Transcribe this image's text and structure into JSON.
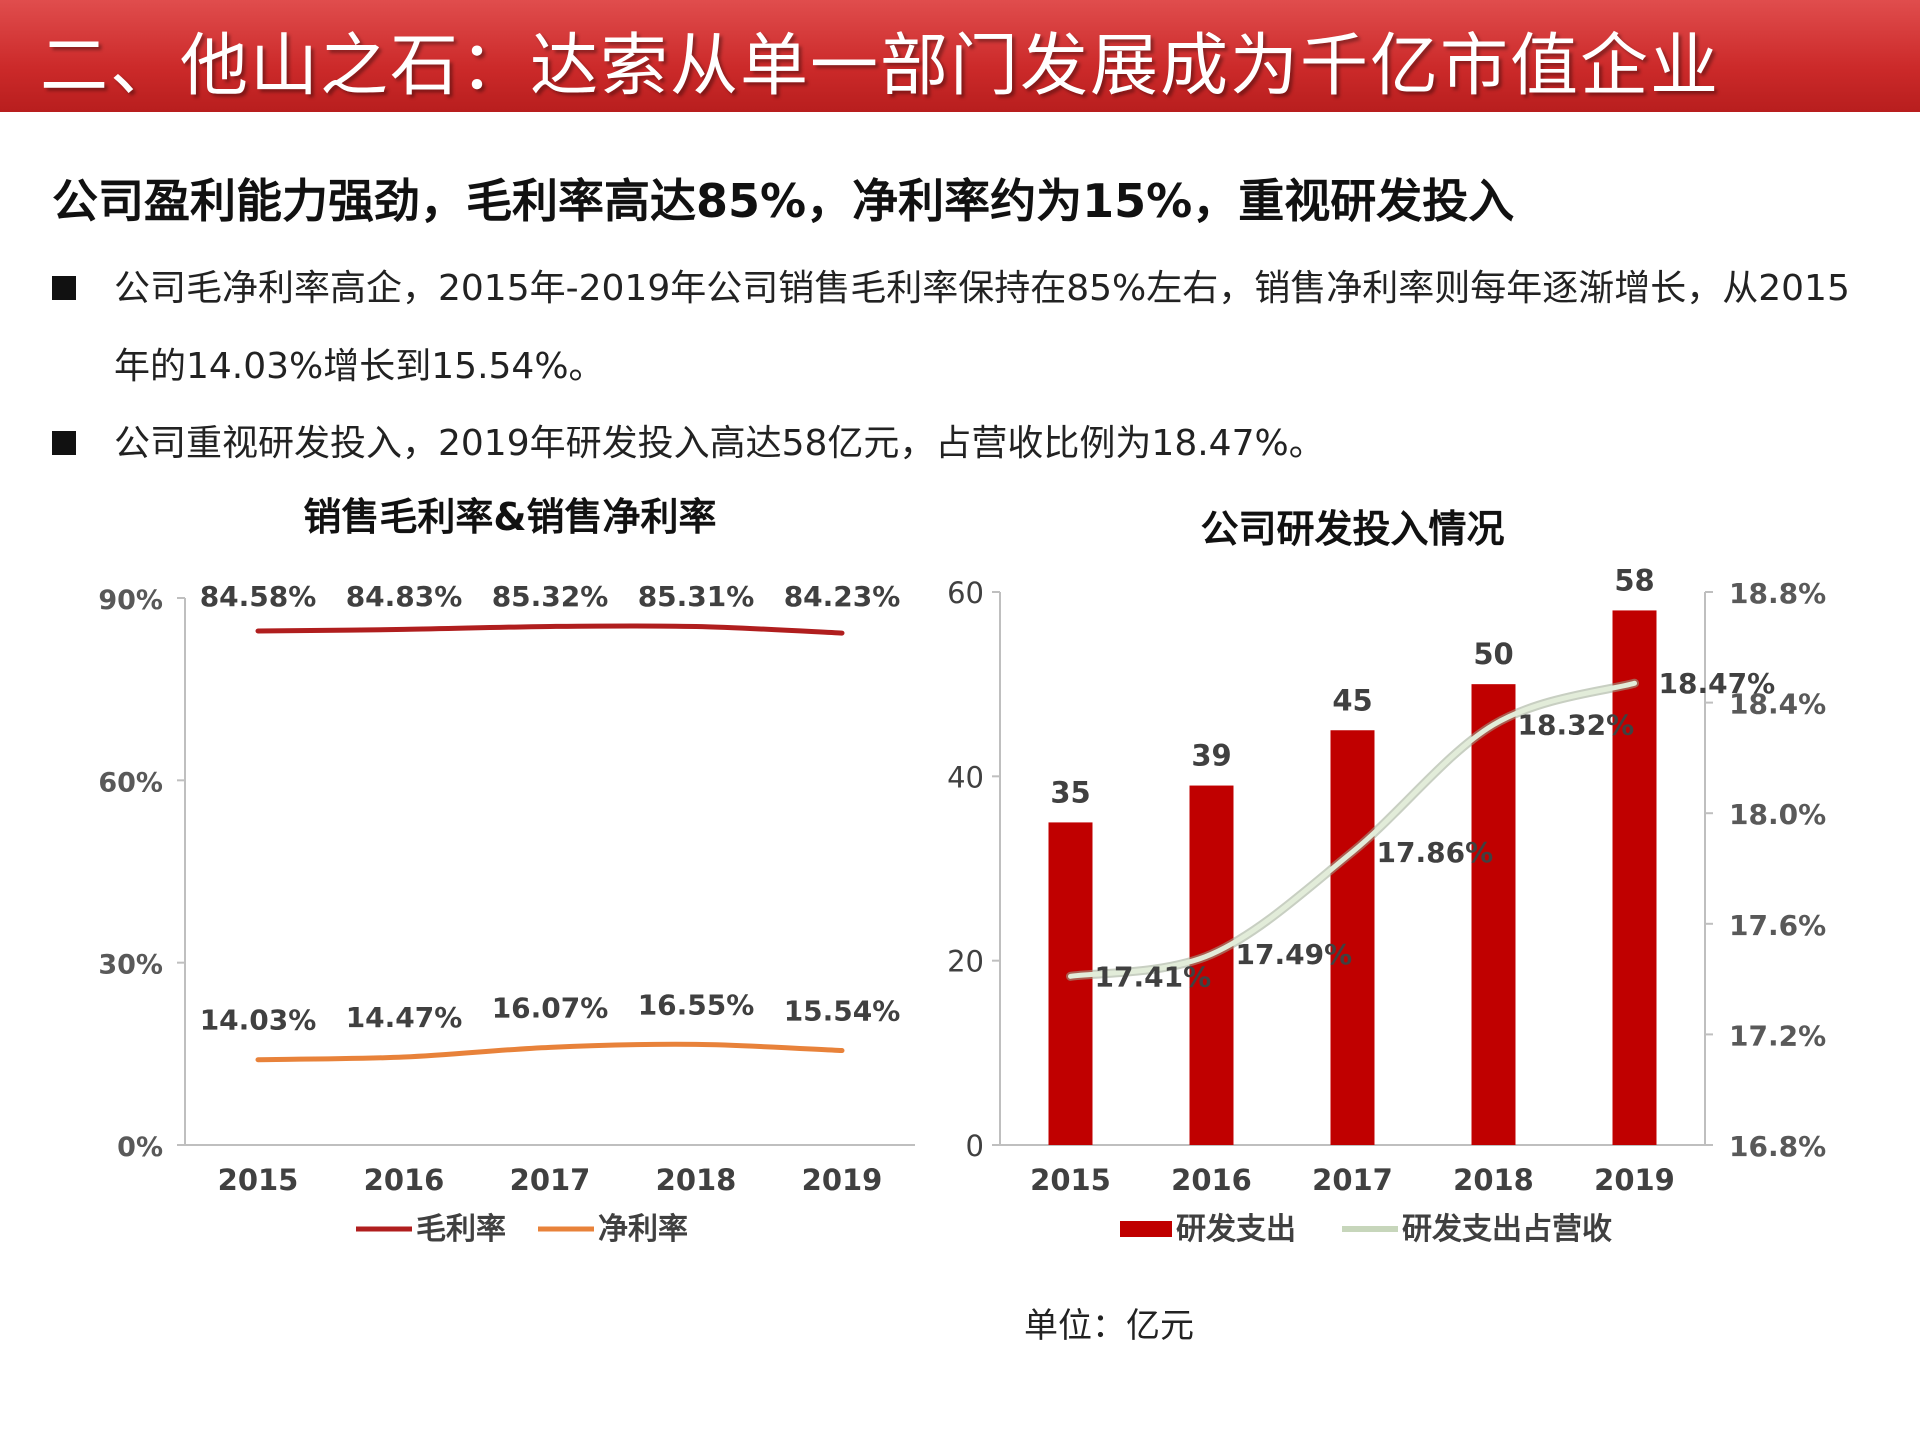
{
  "header": {
    "title": "二、他山之石：达索从单一部门发展成为千亿市值企业"
  },
  "subtitle": "公司盈利能力强劲，毛利率高达85%，净利率约为15%，重视研发投入",
  "bullets": [
    "公司毛净利率高企，2015年-2019年公司销售毛利率保持在85%左右，销售净利率则每年逐渐增长，从2015年的14.03%增长到15.54%。",
    "公司重视研发投入，2019年研发投入高达58亿元，占营收比例为18.47%。"
  ],
  "colors": {
    "header": "#cc2a2a",
    "gross": "#b01e1e",
    "net": "#e8823a",
    "bar": "#c00000",
    "ratio_line": "#e2ecd9"
  },
  "chart_data": [
    {
      "type": "line",
      "title": "销售毛利率&销售净利率",
      "categories": [
        "2015",
        "2016",
        "2017",
        "2018",
        "2019"
      ],
      "y_ticks": [
        "90%",
        "60%",
        "30%",
        "0%"
      ],
      "ylim": [
        0,
        90
      ],
      "series": [
        {
          "name": "毛利率",
          "values": [
            84.58,
            84.83,
            85.32,
            85.31,
            84.23
          ],
          "labels": [
            "84.58%",
            "84.83%",
            "85.32%",
            "85.31%",
            "84.23%"
          ]
        },
        {
          "name": "净利率",
          "values": [
            14.03,
            14.47,
            16.07,
            16.55,
            15.54
          ],
          "labels": [
            "14.03%",
            "14.47%",
            "16.07%",
            "16.55%",
            "15.54%"
          ]
        }
      ],
      "legend": "bottom",
      "grid": false
    },
    {
      "type": "bar",
      "title": "公司研发投入情况",
      "categories": [
        "2015",
        "2016",
        "2017",
        "2018",
        "2019"
      ],
      "y_left_ticks": [
        "60",
        "40",
        "20",
        "0"
      ],
      "ylim_left": [
        0,
        60
      ],
      "y_right_ticks": [
        "18.8%",
        "18.4%",
        "18.0%",
        "17.6%",
        "17.2%",
        "16.8%"
      ],
      "ylim_right": [
        16.8,
        18.8
      ],
      "series": [
        {
          "name": "研发支出",
          "kind": "bar",
          "axis": "left",
          "values": [
            35,
            39,
            45,
            50,
            58
          ],
          "labels": [
            "35",
            "39",
            "45",
            "50",
            "58"
          ]
        },
        {
          "name": "研发支出占营收",
          "kind": "line",
          "axis": "right",
          "values": [
            17.41,
            17.49,
            17.86,
            18.32,
            18.47
          ],
          "labels": [
            "17.41%",
            "17.49%",
            "17.86%",
            "18.32%",
            "18.47%"
          ]
        }
      ],
      "legend": "bottom",
      "grid": false,
      "unit_note": "单位：亿元"
    }
  ]
}
